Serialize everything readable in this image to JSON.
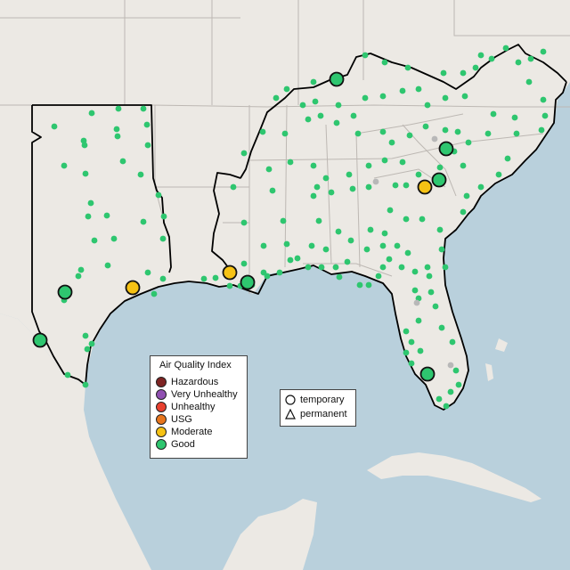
{
  "legend": {
    "title": "Air Quality Index",
    "categories": [
      {
        "label": "Hazardous",
        "color": "#7e2423"
      },
      {
        "label": "Very Unhealthy",
        "color": "#8f4fb1"
      },
      {
        "label": "Unhealthy",
        "color": "#e8402f"
      },
      {
        "label": "USG",
        "color": "#e8761d"
      },
      {
        "label": "Moderate",
        "color": "#f6c214"
      },
      {
        "label": "Good",
        "color": "#2ec66f"
      }
    ]
  },
  "monitor_types": {
    "temporary": "temporary",
    "permanent": "permanent",
    "temporary_icon": "circle-icon",
    "permanent_icon": "triangle-icon"
  },
  "colors": {
    "water": "#b9d0dc",
    "land": "#ece9e4",
    "border": "#000000",
    "state_line": "#bdb8b3"
  }
}
